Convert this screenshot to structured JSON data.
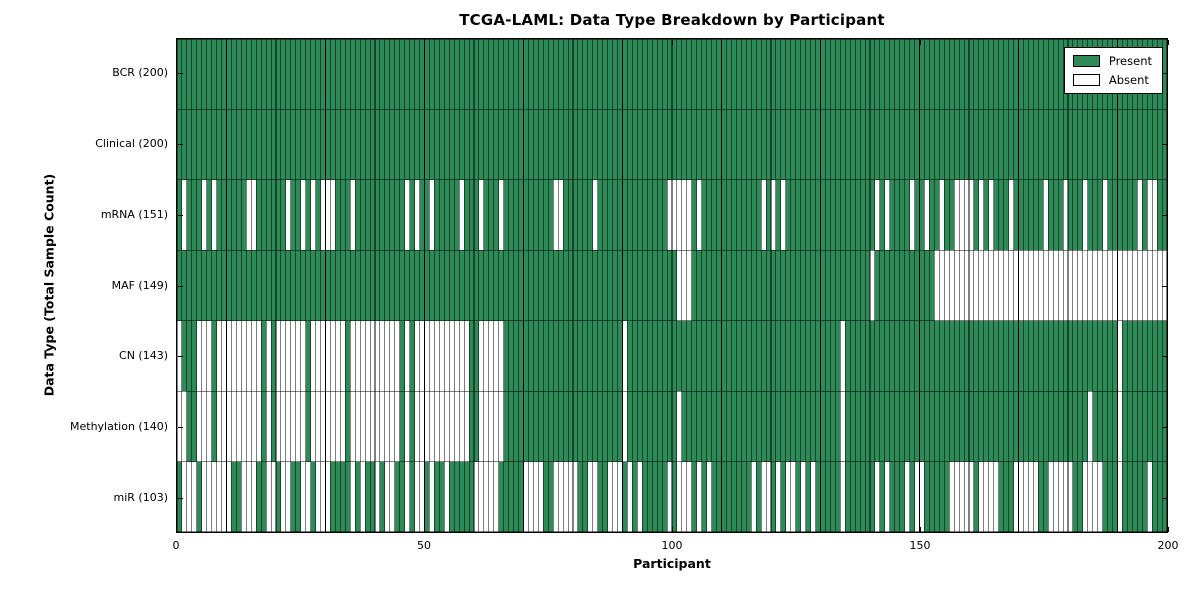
{
  "title": "TCGA-LAML: Data Type Breakdown by Participant",
  "x_axis": {
    "label": "Participant",
    "ticks": [
      "0",
      "50",
      "100",
      "150",
      "200"
    ]
  },
  "y_axis": {
    "label": "Data Type (Total Sample Count)"
  },
  "legend": {
    "items": [
      {
        "label": "Present",
        "color": "#2E8B57"
      },
      {
        "label": "Absent",
        "color": "#FFFFFF"
      }
    ]
  },
  "colors": {
    "present": "#2E8B57",
    "absent": "#FFFFFF",
    "edge": "#000000",
    "background": "#FFFFFF"
  },
  "chart_data": {
    "type": "heatmap",
    "title": "TCGA-LAML: Data Type Breakdown by Participant",
    "xlabel": "Participant",
    "ylabel": "Data Type (Total Sample Count)",
    "x_range": [
      0,
      200
    ],
    "n_participants": 200,
    "x_ticks": [
      0,
      50,
      100,
      150,
      200
    ],
    "legend_entries": [
      "Present",
      "Absent"
    ],
    "cell_states": [
      "present",
      "absent"
    ],
    "rows": [
      {
        "label": "BCR (200)",
        "data_type": "BCR",
        "present_count": 200,
        "absent_ranges": []
      },
      {
        "label": "Clinical (200)",
        "data_type": "Clinical",
        "present_count": 200,
        "absent_ranges": []
      },
      {
        "label": "mRNA (151)",
        "data_type": "mRNA",
        "present_count": 151,
        "absent_ranges": [
          [
            1,
            1
          ],
          [
            5,
            5
          ],
          [
            7,
            7
          ],
          [
            14,
            15
          ],
          [
            22,
            22
          ],
          [
            25,
            25
          ],
          [
            27,
            27
          ],
          [
            29,
            31
          ],
          [
            35,
            35
          ],
          [
            46,
            46
          ],
          [
            48,
            48
          ],
          [
            51,
            51
          ],
          [
            57,
            57
          ],
          [
            61,
            61
          ],
          [
            65,
            65
          ],
          [
            76,
            77
          ],
          [
            84,
            84
          ],
          [
            99,
            103
          ],
          [
            105,
            105
          ],
          [
            118,
            118
          ],
          [
            120,
            120
          ],
          [
            122,
            122
          ],
          [
            141,
            141
          ],
          [
            143,
            143
          ],
          [
            148,
            148
          ],
          [
            151,
            151
          ],
          [
            154,
            154
          ],
          [
            157,
            160
          ],
          [
            162,
            162
          ],
          [
            164,
            164
          ],
          [
            168,
            168
          ],
          [
            175,
            175
          ],
          [
            179,
            179
          ],
          [
            183,
            183
          ],
          [
            187,
            187
          ],
          [
            194,
            194
          ],
          [
            196,
            197
          ]
        ]
      },
      {
        "label": "MAF (149)",
        "data_type": "MAF",
        "present_count": 149,
        "absent_ranges": [
          [
            101,
            103
          ],
          [
            140,
            140
          ],
          [
            153,
            199
          ]
        ]
      },
      {
        "label": "CN (143)",
        "data_type": "CN",
        "present_count": 143,
        "absent_ranges": [
          [
            0,
            0
          ],
          [
            4,
            6
          ],
          [
            8,
            16
          ],
          [
            18,
            18
          ],
          [
            20,
            25
          ],
          [
            27,
            33
          ],
          [
            35,
            44
          ],
          [
            46,
            46
          ],
          [
            48,
            58
          ],
          [
            61,
            65
          ],
          [
            90,
            90
          ],
          [
            134,
            134
          ],
          [
            190,
            190
          ]
        ]
      },
      {
        "label": "Methylation (140)",
        "data_type": "Methylation",
        "present_count": 140,
        "absent_ranges": [
          [
            0,
            1
          ],
          [
            4,
            6
          ],
          [
            8,
            16
          ],
          [
            18,
            18
          ],
          [
            20,
            25
          ],
          [
            27,
            33
          ],
          [
            35,
            44
          ],
          [
            46,
            46
          ],
          [
            48,
            58
          ],
          [
            61,
            65
          ],
          [
            90,
            90
          ],
          [
            101,
            101
          ],
          [
            134,
            134
          ],
          [
            184,
            184
          ],
          [
            190,
            190
          ]
        ]
      },
      {
        "label": "miR (103)",
        "data_type": "miR",
        "present_count": 103,
        "absent_ranges": [
          [
            1,
            3
          ],
          [
            5,
            10
          ],
          [
            13,
            15
          ],
          [
            18,
            19
          ],
          [
            21,
            22
          ],
          [
            25,
            26
          ],
          [
            28,
            30
          ],
          [
            35,
            35
          ],
          [
            37,
            37
          ],
          [
            40,
            40
          ],
          [
            42,
            43
          ],
          [
            46,
            46
          ],
          [
            48,
            49
          ],
          [
            51,
            51
          ],
          [
            54,
            54
          ],
          [
            60,
            64
          ],
          [
            70,
            73
          ],
          [
            76,
            80
          ],
          [
            83,
            84
          ],
          [
            87,
            89
          ],
          [
            91,
            91
          ],
          [
            93,
            93
          ],
          [
            99,
            99
          ],
          [
            101,
            103
          ],
          [
            105,
            105
          ],
          [
            107,
            107
          ],
          [
            116,
            116
          ],
          [
            118,
            119
          ],
          [
            121,
            121
          ],
          [
            123,
            124
          ],
          [
            126,
            126
          ],
          [
            128,
            128
          ],
          [
            134,
            134
          ],
          [
            141,
            141
          ],
          [
            143,
            143
          ],
          [
            147,
            147
          ],
          [
            149,
            150
          ],
          [
            156,
            160
          ],
          [
            162,
            165
          ],
          [
            169,
            173
          ],
          [
            176,
            180
          ],
          [
            183,
            186
          ],
          [
            190,
            190
          ],
          [
            196,
            196
          ]
        ]
      }
    ]
  }
}
